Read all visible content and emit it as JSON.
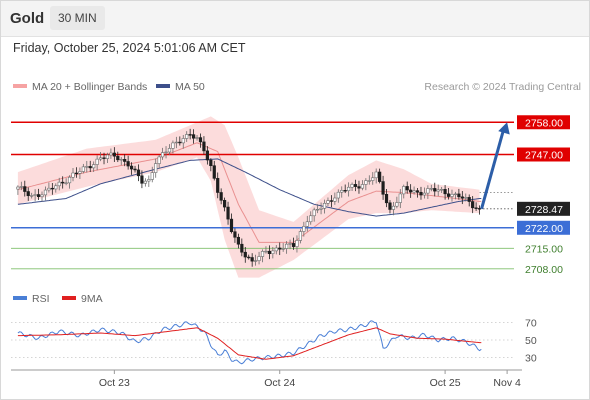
{
  "header": {
    "title": "Gold",
    "timeframe": "30 MIN"
  },
  "datetime": "Friday, October 25, 2024 5:01:06 AM CET",
  "credit": "Research © 2024 Trading Central",
  "colors": {
    "red_level": "#e00000",
    "blue_level": "#3c6ed6",
    "green_level": "#7fbf6a",
    "last_price": "#222222",
    "arrow": "#2c5ea8",
    "bollinger": "#f6a3a3",
    "ma50": "#3d4f8a",
    "rsi": "#4a7fd6",
    "rsi_ma": "#e02020",
    "candle_up": "#6b6b6b",
    "candle_down": "#1e1e1e"
  },
  "chart_data": [
    {
      "type": "candlestick",
      "name": "price",
      "legend": [
        {
          "label": "MA 20 + Bollinger Bands",
          "color": "#f6a3a3"
        },
        {
          "label": "MA 50",
          "color": "#3d4f8a"
        }
      ],
      "ylim": [
        2703.5,
        2761.5
      ],
      "x_ticks": [
        {
          "t": 28,
          "label": "Oct 23"
        },
        {
          "t": 76,
          "label": "Oct 24"
        },
        {
          "t": 124,
          "label": "Oct 25"
        },
        {
          "t": 142,
          "label": "Nov 4"
        }
      ],
      "x_range": [
        -2,
        144
      ],
      "levels": [
        {
          "value": 2758.0,
          "label": "2758.00",
          "style": "red"
        },
        {
          "value": 2747.0,
          "label": "2747.00",
          "style": "red"
        },
        {
          "value": 2722.0,
          "label": "2722.00",
          "style": "blue"
        },
        {
          "value": 2715.0,
          "label": "2715.00",
          "style": "green"
        },
        {
          "value": 2708.0,
          "label": "2708.00",
          "style": "green"
        }
      ],
      "last_price": {
        "value": 2728.47,
        "label": "2728.47"
      },
      "forecast_arrow": {
        "from": [
          134,
          2728.47
        ],
        "to": [
          142,
          2758.0
        ]
      },
      "anchors": [
        [
          0,
          2735.5
        ],
        [
          4,
          2733
        ],
        [
          8,
          2734
        ],
        [
          12,
          2737
        ],
        [
          16,
          2740
        ],
        [
          20,
          2742.5
        ],
        [
          24,
          2746
        ],
        [
          28,
          2746.5
        ],
        [
          32,
          2744
        ],
        [
          36,
          2737.5
        ],
        [
          38,
          2738
        ],
        [
          40,
          2745
        ],
        [
          44,
          2749
        ],
        [
          48,
          2753
        ],
        [
          50,
          2754
        ],
        [
          52,
          2752
        ],
        [
          54,
          2748.5
        ],
        [
          56,
          2743
        ],
        [
          58,
          2735
        ],
        [
          60,
          2728
        ],
        [
          62,
          2721
        ],
        [
          64,
          2716
        ],
        [
          66,
          2713
        ],
        [
          68,
          2710
        ],
        [
          72,
          2714
        ],
        [
          76,
          2715
        ],
        [
          80,
          2716
        ],
        [
          84,
          2725
        ],
        [
          88,
          2729
        ],
        [
          92,
          2733
        ],
        [
          96,
          2735.5
        ],
        [
          100,
          2737
        ],
        [
          104,
          2740
        ],
        [
          108,
          2728
        ],
        [
          112,
          2735
        ],
        [
          116,
          2734
        ],
        [
          120,
          2735
        ],
        [
          124,
          2734
        ],
        [
          128,
          2733
        ],
        [
          132,
          2729.5
        ],
        [
          134,
          2728.47
        ]
      ],
      "bollinger_upper": [
        [
          0,
          2741
        ],
        [
          20,
          2749
        ],
        [
          40,
          2752
        ],
        [
          52,
          2758
        ],
        [
          56,
          2760
        ],
        [
          60,
          2757
        ],
        [
          64,
          2746
        ],
        [
          70,
          2728
        ],
        [
          80,
          2724
        ],
        [
          88,
          2732
        ],
        [
          96,
          2740
        ],
        [
          104,
          2745
        ],
        [
          112,
          2742
        ],
        [
          120,
          2737
        ],
        [
          134,
          2735
        ]
      ],
      "bollinger_lower": [
        [
          0,
          2730
        ],
        [
          20,
          2736
        ],
        [
          40,
          2741
        ],
        [
          52,
          2746
        ],
        [
          56,
          2738
        ],
        [
          60,
          2718
        ],
        [
          64,
          2705
        ],
        [
          70,
          2705
        ],
        [
          80,
          2711
        ],
        [
          88,
          2718
        ],
        [
          96,
          2725
        ],
        [
          104,
          2727
        ],
        [
          112,
          2727
        ],
        [
          120,
          2728
        ],
        [
          134,
          2727
        ]
      ],
      "ma20": [
        [
          0,
          2735
        ],
        [
          20,
          2741
        ],
        [
          40,
          2745.5
        ],
        [
          52,
          2751
        ],
        [
          58,
          2748
        ],
        [
          64,
          2730
        ],
        [
          70,
          2717
        ],
        [
          80,
          2717
        ],
        [
          88,
          2724
        ],
        [
          96,
          2731
        ],
        [
          104,
          2734.5
        ],
        [
          112,
          2734
        ],
        [
          120,
          2733
        ],
        [
          134,
          2731
        ]
      ],
      "ma50": [
        [
          0,
          2730
        ],
        [
          14,
          2732
        ],
        [
          24,
          2737
        ],
        [
          40,
          2742
        ],
        [
          50,
          2745
        ],
        [
          58,
          2745.5
        ],
        [
          66,
          2741
        ],
        [
          76,
          2735
        ],
        [
          86,
          2730
        ],
        [
          96,
          2727.5
        ],
        [
          104,
          2726
        ],
        [
          112,
          2727
        ],
        [
          120,
          2729
        ],
        [
          128,
          2731
        ],
        [
          134,
          2732
        ]
      ]
    },
    {
      "type": "line",
      "name": "rsi",
      "legend": [
        {
          "label": "RSI",
          "color": "#4a7fd6"
        },
        {
          "label": "9MA",
          "color": "#e02020"
        }
      ],
      "ylim": [
        18,
        82
      ],
      "y_ticks": [
        {
          "value": 70,
          "label": "70"
        },
        {
          "value": 50,
          "label": "50"
        },
        {
          "value": 30,
          "label": "30"
        }
      ],
      "rsi": [
        [
          0,
          58
        ],
        [
          6,
          52
        ],
        [
          12,
          60
        ],
        [
          18,
          55
        ],
        [
          24,
          62
        ],
        [
          30,
          58
        ],
        [
          34,
          48
        ],
        [
          38,
          52
        ],
        [
          42,
          62
        ],
        [
          46,
          66
        ],
        [
          50,
          70
        ],
        [
          54,
          60
        ],
        [
          56,
          45
        ],
        [
          58,
          32
        ],
        [
          60,
          38
        ],
        [
          62,
          28
        ],
        [
          64,
          24
        ],
        [
          68,
          28
        ],
        [
          72,
          30
        ],
        [
          76,
          32
        ],
        [
          80,
          35
        ],
        [
          84,
          45
        ],
        [
          88,
          55
        ],
        [
          92,
          60
        ],
        [
          96,
          62
        ],
        [
          100,
          66
        ],
        [
          104,
          72
        ],
        [
          106,
          40
        ],
        [
          110,
          55
        ],
        [
          114,
          52
        ],
        [
          118,
          56
        ],
        [
          122,
          50
        ],
        [
          126,
          52
        ],
        [
          130,
          48
        ],
        [
          134,
          40
        ]
      ],
      "rsi_ma": [
        [
          0,
          55
        ],
        [
          12,
          56
        ],
        [
          24,
          58
        ],
        [
          34,
          55
        ],
        [
          44,
          60
        ],
        [
          52,
          64
        ],
        [
          58,
          52
        ],
        [
          64,
          33
        ],
        [
          72,
          28
        ],
        [
          80,
          32
        ],
        [
          88,
          44
        ],
        [
          96,
          56
        ],
        [
          104,
          64
        ],
        [
          108,
          57
        ],
        [
          116,
          52
        ],
        [
          124,
          51
        ],
        [
          134,
          47
        ]
      ]
    }
  ]
}
